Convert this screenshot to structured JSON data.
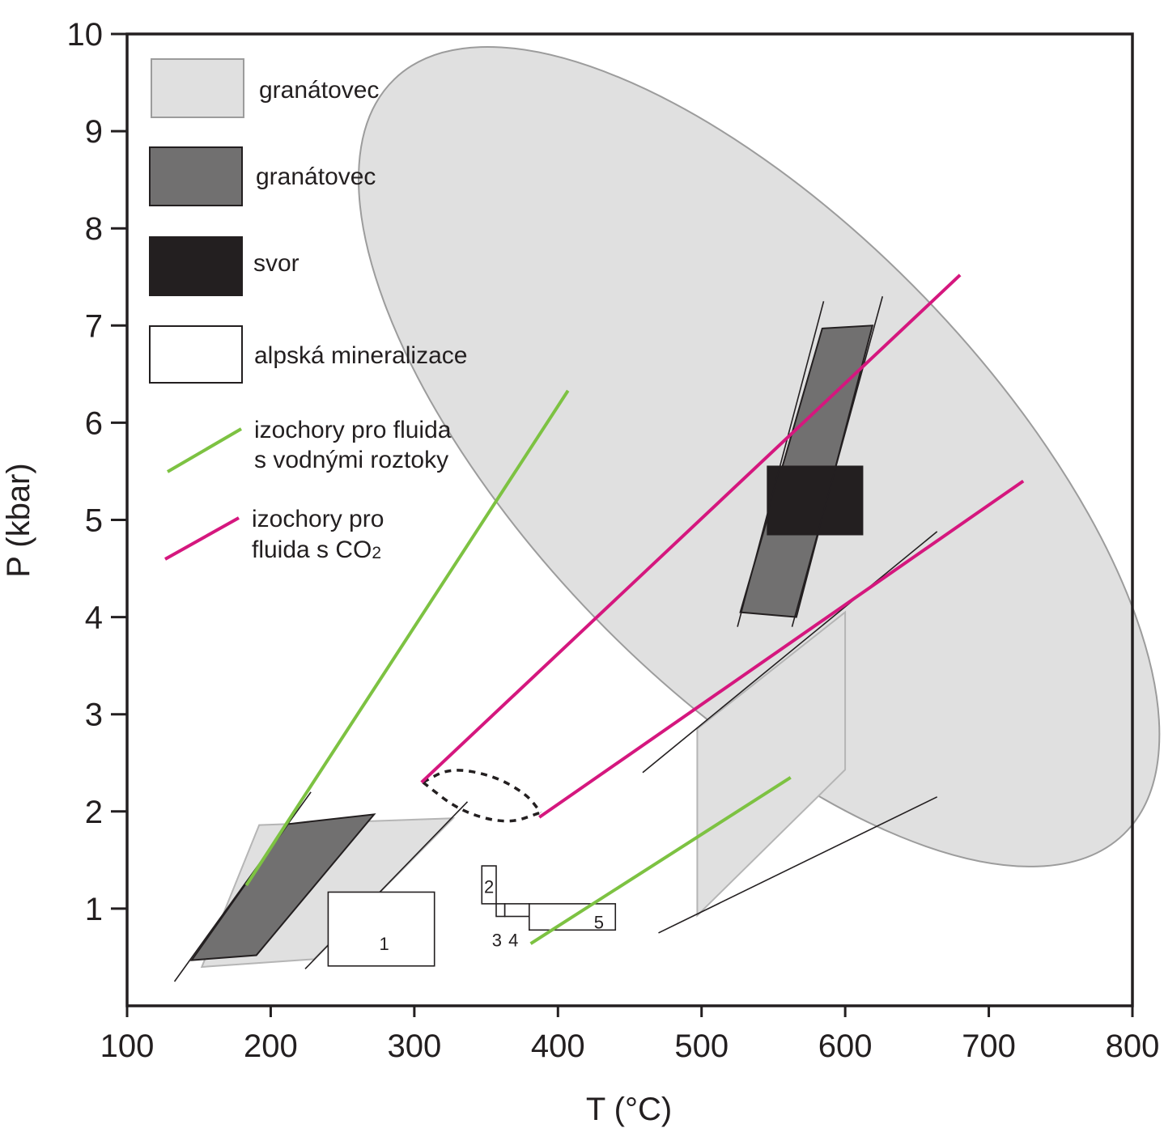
{
  "chart_data": {
    "type": "scatter",
    "xlabel": "T (°C)",
    "ylabel": "P (kbar)",
    "xlim": [
      100,
      800
    ],
    "ylim": [
      0,
      10
    ],
    "xticks": [
      "100",
      "200",
      "300",
      "400",
      "500",
      "600",
      "700",
      "800"
    ],
    "yticks": [
      "1",
      "2",
      "3",
      "4",
      "5",
      "6",
      "7",
      "8",
      "9",
      "10"
    ],
    "grid": false,
    "legend_position": "top-left",
    "colors": {
      "light_field": "#e0e0e0",
      "dark_field": "#717070",
      "black_field": "#231f20",
      "water_isochore": "#7dc242",
      "co2_isochore": "#d5177e"
    },
    "legend": [
      {
        "label": "granátovec",
        "style": "light-field"
      },
      {
        "label": "granátovec",
        "style": "dark-field"
      },
      {
        "label": "svor",
        "style": "black-field"
      },
      {
        "label": "alpská mineralizace",
        "style": "open-box"
      },
      {
        "label_lines": [
          "izochory pro fluida",
          "s vodnými roztoky"
        ],
        "style": "green-line"
      },
      {
        "label_lines": [
          "izochory pro",
          "fluida s CO"
        ],
        "subscript": "2",
        "style": "magenta-line"
      }
    ],
    "light_regions": [
      {
        "name": "large-ellipse",
        "shape": "ellipse",
        "cx": 540,
        "cy": 5.65,
        "rx": 160,
        "ry": 5.4,
        "rotation": -44
      },
      {
        "name": "low-parallelogram",
        "points": [
          [
            152,
            0.4
          ],
          [
            230,
            0.48
          ],
          [
            327,
            1.93
          ],
          [
            192,
            1.86
          ]
        ]
      },
      {
        "name": "mid-parallelogram",
        "points": [
          [
            497,
            0.93
          ],
          [
            600,
            2.43
          ],
          [
            600,
            4.05
          ],
          [
            497,
            2.85
          ]
        ]
      }
    ],
    "dark_regions": [
      {
        "name": "low-parallelogram",
        "points": [
          [
            145,
            0.47
          ],
          [
            190,
            0.52
          ],
          [
            272,
            1.97
          ],
          [
            212,
            1.87
          ]
        ]
      },
      {
        "name": "upper-parallelogram",
        "points": [
          [
            527,
            4.05
          ],
          [
            566,
            4.0
          ],
          [
            619,
            7.0
          ],
          [
            584,
            6.97
          ]
        ]
      }
    ],
    "black_regions": [
      {
        "name": "svor-box",
        "x": [
          546,
          612
        ],
        "y": [
          4.85,
          5.55
        ]
      }
    ],
    "thin_lines": [
      {
        "from": [
          133,
          0.25
        ],
        "to": [
          228,
          2.2
        ]
      },
      {
        "from": [
          525,
          3.9
        ],
        "to": [
          585,
          7.25
        ]
      },
      {
        "from": [
          563,
          3.9
        ],
        "to": [
          626,
          7.3
        ]
      },
      {
        "from": [
          459,
          2.4
        ],
        "to": [
          664,
          4.88
        ]
      },
      {
        "from": [
          224,
          0.38
        ],
        "to": [
          337,
          2.1
        ]
      },
      {
        "from": [
          470,
          0.75
        ],
        "to": [
          664,
          2.15
        ]
      }
    ],
    "alpine_boxes": [
      {
        "label": "1",
        "x": [
          240,
          314
        ],
        "y": [
          0.41,
          1.17
        ],
        "label_at": [
          279,
          0.64
        ]
      },
      {
        "label": "2",
        "x": [
          347,
          357
        ],
        "y": [
          1.05,
          1.44
        ],
        "label_at": [
          352,
          1.23
        ]
      },
      {
        "label": "3",
        "x": [
          357,
          363
        ],
        "y": [
          0.92,
          1.05
        ],
        "label_at": [
          357.5,
          0.68
        ]
      },
      {
        "label": "4",
        "x": [
          363,
          380
        ],
        "y": [
          0.92,
          1.05
        ],
        "label_at": [
          369,
          0.68
        ]
      },
      {
        "label": "5",
        "x": [
          380,
          440
        ],
        "y": [
          0.78,
          1.05
        ],
        "label_at": [
          428.5,
          0.86
        ]
      }
    ],
    "dashed_field": {
      "name": "dashed-lens",
      "upper": [
        [
          306,
          2.3
        ],
        [
          325,
          2.45
        ],
        [
          355,
          2.37
        ],
        [
          378,
          2.18
        ],
        [
          388,
          1.99
        ]
      ],
      "lower": [
        [
          306,
          2.3
        ],
        [
          332,
          2.0
        ],
        [
          365,
          1.87
        ],
        [
          388,
          1.99
        ]
      ]
    },
    "water_isochores": [
      {
        "from": [
          183,
          1.24
        ],
        "to": [
          407,
          6.33
        ]
      },
      {
        "from": [
          381,
          0.64
        ],
        "to": [
          562,
          2.35
        ]
      }
    ],
    "co2_isochores": [
      {
        "from": [
          305,
          2.3
        ],
        "to": [
          680,
          7.52
        ]
      },
      {
        "from": [
          387,
          1.94
        ],
        "to": [
          724,
          5.4
        ]
      }
    ]
  }
}
